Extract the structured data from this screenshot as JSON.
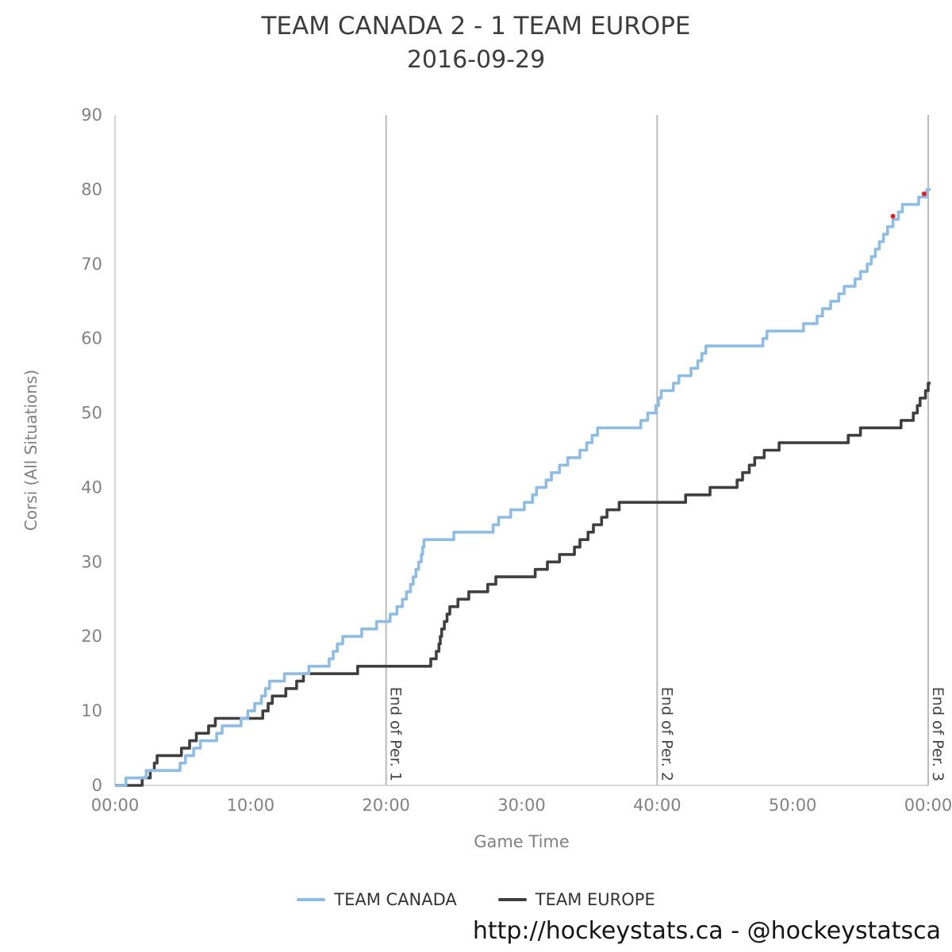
{
  "title": {
    "line1": "TEAM CANADA 2 - 1 TEAM EUROPE",
    "line2": "2016-09-29"
  },
  "footer": "http://hockeystats.ca - @hockeystatsca",
  "legend": [
    {
      "label": "TEAM CANADA",
      "color": "#8fbce2"
    },
    {
      "label": "TEAM EUROPE",
      "color": "#3f3f3f"
    }
  ],
  "colors": {
    "axis": "#c9c9c9",
    "tick_text": "#828282",
    "axis_title": "#7f7f7f",
    "period_line": "#bcbcbc",
    "period_label": "#444444",
    "title_text": "#3d3d3d"
  },
  "chart_data": {
    "type": "line",
    "subtype": "step-after",
    "title": "TEAM CANADA 2 - 1 TEAM EUROPE 2016-09-29",
    "xlabel": "Game Time",
    "ylabel": "Corsi (All Situations)",
    "xlim": [
      0,
      60
    ],
    "ylim": [
      0,
      90
    ],
    "grid": false,
    "legend_position": "bottom",
    "x_ticks": [
      {
        "t": 0,
        "label": "00:00"
      },
      {
        "t": 10,
        "label": "10:00"
      },
      {
        "t": 20,
        "label": "20:00"
      },
      {
        "t": 30,
        "label": "30:00"
      },
      {
        "t": 40,
        "label": "40:00"
      },
      {
        "t": 50,
        "label": "50:00"
      },
      {
        "t": 60,
        "label": "00:00"
      }
    ],
    "y_ticks": [
      0,
      10,
      20,
      30,
      40,
      50,
      60,
      70,
      80,
      90
    ],
    "period_lines": [
      {
        "t": 20,
        "label": "End of Per. 1"
      },
      {
        "t": 40,
        "label": "End of Per. 2"
      },
      {
        "t": 60,
        "label": "End of Per. 3"
      }
    ],
    "series": [
      {
        "name": "TEAM CANADA",
        "color": "#8fbce2",
        "points": [
          [
            0,
            0
          ],
          [
            0.8,
            1
          ],
          [
            2.3,
            2
          ],
          [
            4.8,
            3
          ],
          [
            5.2,
            4
          ],
          [
            5.8,
            5
          ],
          [
            6.3,
            6
          ],
          [
            7.5,
            7
          ],
          [
            7.9,
            8
          ],
          [
            9.3,
            9
          ],
          [
            9.8,
            10
          ],
          [
            10.3,
            11
          ],
          [
            10.8,
            12
          ],
          [
            11.1,
            13
          ],
          [
            11.4,
            14
          ],
          [
            12.5,
            15
          ],
          [
            14.3,
            16
          ],
          [
            15.8,
            17
          ],
          [
            16.1,
            18
          ],
          [
            16.4,
            19
          ],
          [
            16.8,
            20
          ],
          [
            18.2,
            21
          ],
          [
            19.3,
            22
          ],
          [
            20.3,
            23
          ],
          [
            20.8,
            24
          ],
          [
            21.2,
            25
          ],
          [
            21.5,
            26
          ],
          [
            21.8,
            27
          ],
          [
            22.0,
            28
          ],
          [
            22.2,
            29
          ],
          [
            22.4,
            30
          ],
          [
            22.6,
            31
          ],
          [
            22.7,
            32
          ],
          [
            22.8,
            33
          ],
          [
            25.0,
            34
          ],
          [
            27.9,
            35
          ],
          [
            28.3,
            36
          ],
          [
            29.2,
            37
          ],
          [
            30.2,
            38
          ],
          [
            30.8,
            39
          ],
          [
            31.1,
            40
          ],
          [
            31.8,
            41
          ],
          [
            32.2,
            42
          ],
          [
            32.8,
            43
          ],
          [
            33.4,
            44
          ],
          [
            34.3,
            45
          ],
          [
            34.8,
            46
          ],
          [
            35.2,
            47
          ],
          [
            35.6,
            48
          ],
          [
            38.8,
            49
          ],
          [
            39.3,
            50
          ],
          [
            39.9,
            51
          ],
          [
            40.1,
            52
          ],
          [
            40.3,
            53
          ],
          [
            41.2,
            54
          ],
          [
            41.6,
            55
          ],
          [
            42.5,
            56
          ],
          [
            43.0,
            57
          ],
          [
            43.3,
            58
          ],
          [
            43.6,
            59
          ],
          [
            47.8,
            60
          ],
          [
            48.1,
            61
          ],
          [
            50.8,
            62
          ],
          [
            51.8,
            63
          ],
          [
            52.2,
            64
          ],
          [
            52.8,
            65
          ],
          [
            53.4,
            66
          ],
          [
            53.8,
            67
          ],
          [
            54.6,
            68
          ],
          [
            55.0,
            69
          ],
          [
            55.5,
            70
          ],
          [
            55.8,
            71
          ],
          [
            56.1,
            72
          ],
          [
            56.4,
            73
          ],
          [
            56.7,
            74
          ],
          [
            57.0,
            75
          ],
          [
            57.4,
            76
          ],
          [
            57.8,
            77
          ],
          [
            58.1,
            78
          ],
          [
            59.3,
            79
          ],
          [
            59.9,
            80
          ]
        ]
      },
      {
        "name": "TEAM EUROPE",
        "color": "#3f3f3f",
        "points": [
          [
            0,
            0
          ],
          [
            2.0,
            1
          ],
          [
            2.6,
            2
          ],
          [
            2.9,
            3
          ],
          [
            3.1,
            4
          ],
          [
            4.9,
            5
          ],
          [
            5.5,
            6
          ],
          [
            6.0,
            7
          ],
          [
            6.9,
            8
          ],
          [
            7.4,
            9
          ],
          [
            10.9,
            10
          ],
          [
            11.3,
            11
          ],
          [
            11.6,
            12
          ],
          [
            12.6,
            13
          ],
          [
            13.4,
            14
          ],
          [
            13.9,
            15
          ],
          [
            17.9,
            16
          ],
          [
            23.3,
            17
          ],
          [
            23.7,
            18
          ],
          [
            23.9,
            19
          ],
          [
            24.0,
            20
          ],
          [
            24.1,
            21
          ],
          [
            24.3,
            22
          ],
          [
            24.5,
            23
          ],
          [
            24.7,
            24
          ],
          [
            25.3,
            25
          ],
          [
            26.1,
            26
          ],
          [
            27.5,
            27
          ],
          [
            28.1,
            28
          ],
          [
            31.0,
            29
          ],
          [
            31.9,
            30
          ],
          [
            32.8,
            31
          ],
          [
            33.9,
            32
          ],
          [
            34.3,
            33
          ],
          [
            34.9,
            34
          ],
          [
            35.3,
            35
          ],
          [
            35.9,
            36
          ],
          [
            36.3,
            37
          ],
          [
            37.2,
            38
          ],
          [
            42.1,
            39
          ],
          [
            43.9,
            40
          ],
          [
            45.9,
            41
          ],
          [
            46.3,
            42
          ],
          [
            46.8,
            43
          ],
          [
            47.2,
            44
          ],
          [
            47.9,
            45
          ],
          [
            49.0,
            46
          ],
          [
            54.1,
            47
          ],
          [
            55.0,
            48
          ],
          [
            58.0,
            49
          ],
          [
            58.9,
            50
          ],
          [
            59.2,
            51
          ],
          [
            59.4,
            52
          ],
          [
            59.8,
            53
          ],
          [
            60.0,
            54
          ]
        ]
      }
    ],
    "goal_markers": {
      "color": "#e02020",
      "points": [
        [
          57.4,
          76
        ],
        [
          59.7,
          79
        ]
      ]
    }
  }
}
